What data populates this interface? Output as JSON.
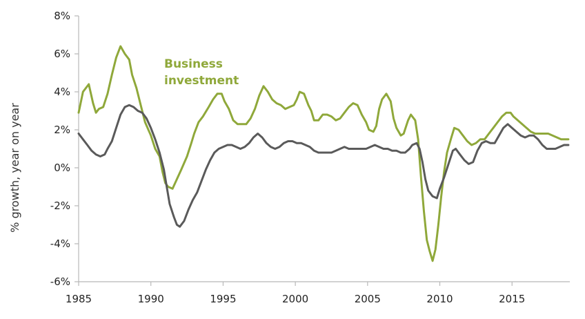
{
  "chart_data": {
    "type": "line",
    "title": "",
    "xlabel": "",
    "ylabel": "% growth, year on year",
    "xlim": [
      1985,
      2019
    ],
    "ylim": [
      -6,
      8
    ],
    "x_ticks": [
      1985,
      1990,
      1995,
      2000,
      2005,
      2010,
      2015
    ],
    "x_tick_labels": [
      "1985",
      "1990",
      "1995",
      "2000",
      "2005",
      "2010",
      "2015"
    ],
    "y_ticks": [
      -6,
      -4,
      -2,
      0,
      2,
      4,
      6,
      8
    ],
    "y_tick_labels": [
      "-6%",
      "-4%",
      "-2%",
      "0%",
      "2%",
      "4%",
      "6%",
      "8%"
    ],
    "grid": false,
    "annotations": [
      {
        "lines": [
          "Business",
          "investment"
        ],
        "series": 0
      }
    ],
    "series": [
      {
        "name": "Business investment",
        "color": "#8fa83a",
        "points": [
          [
            1985.0,
            2.9
          ],
          [
            1985.3,
            4.0
          ],
          [
            1985.7,
            4.4
          ],
          [
            1986.0,
            3.4
          ],
          [
            1986.2,
            2.9
          ],
          [
            1986.4,
            3.1
          ],
          [
            1986.7,
            3.2
          ],
          [
            1987.0,
            3.9
          ],
          [
            1987.3,
            4.9
          ],
          [
            1987.6,
            5.8
          ],
          [
            1987.9,
            6.4
          ],
          [
            1988.2,
            6.0
          ],
          [
            1988.5,
            5.7
          ],
          [
            1988.7,
            4.9
          ],
          [
            1989.0,
            4.2
          ],
          [
            1989.3,
            3.3
          ],
          [
            1989.6,
            2.4
          ],
          [
            1990.0,
            1.7
          ],
          [
            1990.3,
            1.0
          ],
          [
            1990.6,
            0.6
          ],
          [
            1990.8,
            -0.2
          ],
          [
            1991.0,
            -0.8
          ],
          [
            1991.2,
            -1.0
          ],
          [
            1991.5,
            -1.1
          ],
          [
            1991.8,
            -0.6
          ],
          [
            1992.1,
            -0.1
          ],
          [
            1992.5,
            0.6
          ],
          [
            1992.8,
            1.3
          ],
          [
            1993.0,
            1.8
          ],
          [
            1993.3,
            2.4
          ],
          [
            1993.6,
            2.7
          ],
          [
            1994.0,
            3.2
          ],
          [
            1994.3,
            3.6
          ],
          [
            1994.6,
            3.9
          ],
          [
            1994.9,
            3.9
          ],
          [
            1995.1,
            3.5
          ],
          [
            1995.4,
            3.1
          ],
          [
            1995.7,
            2.5
          ],
          [
            1996.0,
            2.3
          ],
          [
            1996.3,
            2.3
          ],
          [
            1996.6,
            2.3
          ],
          [
            1996.9,
            2.6
          ],
          [
            1997.2,
            3.1
          ],
          [
            1997.5,
            3.8
          ],
          [
            1997.8,
            4.3
          ],
          [
            1998.1,
            4.0
          ],
          [
            1998.4,
            3.6
          ],
          [
            1998.7,
            3.4
          ],
          [
            1999.0,
            3.3
          ],
          [
            1999.3,
            3.1
          ],
          [
            1999.6,
            3.2
          ],
          [
            1999.9,
            3.3
          ],
          [
            2000.1,
            3.6
          ],
          [
            2000.3,
            4.0
          ],
          [
            2000.6,
            3.9
          ],
          [
            2000.9,
            3.3
          ],
          [
            2001.1,
            3.0
          ],
          [
            2001.3,
            2.5
          ],
          [
            2001.6,
            2.5
          ],
          [
            2001.9,
            2.8
          ],
          [
            2002.2,
            2.8
          ],
          [
            2002.5,
            2.7
          ],
          [
            2002.8,
            2.5
          ],
          [
            2003.1,
            2.6
          ],
          [
            2003.4,
            2.9
          ],
          [
            2003.7,
            3.2
          ],
          [
            2004.0,
            3.4
          ],
          [
            2004.3,
            3.3
          ],
          [
            2004.6,
            2.8
          ],
          [
            2004.9,
            2.4
          ],
          [
            2005.1,
            2.0
          ],
          [
            2005.4,
            1.9
          ],
          [
            2005.6,
            2.2
          ],
          [
            2005.8,
            3.1
          ],
          [
            2006.0,
            3.6
          ],
          [
            2006.3,
            3.9
          ],
          [
            2006.6,
            3.5
          ],
          [
            2006.8,
            2.6
          ],
          [
            2007.0,
            2.1
          ],
          [
            2007.3,
            1.7
          ],
          [
            2007.5,
            1.8
          ],
          [
            2007.8,
            2.5
          ],
          [
            2008.0,
            2.8
          ],
          [
            2008.3,
            2.5
          ],
          [
            2008.5,
            1.5
          ],
          [
            2008.7,
            -0.5
          ],
          [
            2008.9,
            -2.3
          ],
          [
            2009.1,
            -3.8
          ],
          [
            2009.3,
            -4.4
          ],
          [
            2009.5,
            -4.9
          ],
          [
            2009.7,
            -4.3
          ],
          [
            2009.9,
            -3.0
          ],
          [
            2010.1,
            -1.5
          ],
          [
            2010.3,
            -0.2
          ],
          [
            2010.5,
            0.8
          ],
          [
            2010.8,
            1.6
          ],
          [
            2011.0,
            2.1
          ],
          [
            2011.3,
            2.0
          ],
          [
            2011.6,
            1.7
          ],
          [
            2011.9,
            1.4
          ],
          [
            2012.2,
            1.2
          ],
          [
            2012.5,
            1.3
          ],
          [
            2012.8,
            1.5
          ],
          [
            2013.1,
            1.5
          ],
          [
            2013.4,
            1.8
          ],
          [
            2013.7,
            2.1
          ],
          [
            2014.0,
            2.4
          ],
          [
            2014.3,
            2.7
          ],
          [
            2014.6,
            2.9
          ],
          [
            2014.9,
            2.9
          ],
          [
            2015.1,
            2.7
          ],
          [
            2015.4,
            2.5
          ],
          [
            2015.7,
            2.3
          ],
          [
            2016.0,
            2.1
          ],
          [
            2016.3,
            1.9
          ],
          [
            2016.6,
            1.8
          ],
          [
            2016.9,
            1.8
          ],
          [
            2017.2,
            1.8
          ],
          [
            2017.5,
            1.8
          ],
          [
            2017.8,
            1.7
          ],
          [
            2018.1,
            1.6
          ],
          [
            2018.4,
            1.5
          ],
          [
            2018.7,
            1.5
          ],
          [
            2018.9,
            1.5
          ]
        ]
      },
      {
        "name": "",
        "color": "#5a5a5a",
        "points": [
          [
            1985.0,
            1.8
          ],
          [
            1985.3,
            1.5
          ],
          [
            1985.6,
            1.2
          ],
          [
            1985.9,
            0.9
          ],
          [
            1986.2,
            0.7
          ],
          [
            1986.5,
            0.6
          ],
          [
            1986.8,
            0.7
          ],
          [
            1987.0,
            1.0
          ],
          [
            1987.3,
            1.4
          ],
          [
            1987.6,
            2.1
          ],
          [
            1987.9,
            2.8
          ],
          [
            1988.2,
            3.2
          ],
          [
            1988.5,
            3.3
          ],
          [
            1988.8,
            3.2
          ],
          [
            1989.1,
            3.0
          ],
          [
            1989.4,
            2.9
          ],
          [
            1989.7,
            2.6
          ],
          [
            1990.0,
            2.1
          ],
          [
            1990.3,
            1.5
          ],
          [
            1990.6,
            0.8
          ],
          [
            1990.9,
            -0.1
          ],
          [
            1991.1,
            -1.0
          ],
          [
            1991.3,
            -1.9
          ],
          [
            1991.6,
            -2.6
          ],
          [
            1991.8,
            -3.0
          ],
          [
            1992.0,
            -3.1
          ],
          [
            1992.3,
            -2.8
          ],
          [
            1992.6,
            -2.2
          ],
          [
            1992.9,
            -1.7
          ],
          [
            1993.2,
            -1.3
          ],
          [
            1993.5,
            -0.7
          ],
          [
            1993.8,
            -0.1
          ],
          [
            1994.1,
            0.4
          ],
          [
            1994.4,
            0.8
          ],
          [
            1994.7,
            1.0
          ],
          [
            1995.0,
            1.1
          ],
          [
            1995.3,
            1.2
          ],
          [
            1995.6,
            1.2
          ],
          [
            1995.9,
            1.1
          ],
          [
            1996.2,
            1.0
          ],
          [
            1996.5,
            1.1
          ],
          [
            1996.8,
            1.3
          ],
          [
            1997.1,
            1.6
          ],
          [
            1997.4,
            1.8
          ],
          [
            1997.7,
            1.6
          ],
          [
            1998.0,
            1.3
          ],
          [
            1998.3,
            1.1
          ],
          [
            1998.6,
            1.0
          ],
          [
            1998.9,
            1.1
          ],
          [
            1999.2,
            1.3
          ],
          [
            1999.5,
            1.4
          ],
          [
            1999.8,
            1.4
          ],
          [
            2000.1,
            1.3
          ],
          [
            2000.4,
            1.3
          ],
          [
            2000.7,
            1.2
          ],
          [
            2001.0,
            1.1
          ],
          [
            2001.3,
            0.9
          ],
          [
            2001.6,
            0.8
          ],
          [
            2001.9,
            0.8
          ],
          [
            2002.2,
            0.8
          ],
          [
            2002.5,
            0.8
          ],
          [
            2002.8,
            0.9
          ],
          [
            2003.1,
            1.0
          ],
          [
            2003.4,
            1.1
          ],
          [
            2003.7,
            1.0
          ],
          [
            2004.0,
            1.0
          ],
          [
            2004.3,
            1.0
          ],
          [
            2004.6,
            1.0
          ],
          [
            2004.9,
            1.0
          ],
          [
            2005.2,
            1.1
          ],
          [
            2005.5,
            1.2
          ],
          [
            2005.8,
            1.1
          ],
          [
            2006.1,
            1.0
          ],
          [
            2006.4,
            1.0
          ],
          [
            2006.7,
            0.9
          ],
          [
            2007.0,
            0.9
          ],
          [
            2007.3,
            0.8
          ],
          [
            2007.6,
            0.8
          ],
          [
            2007.9,
            1.0
          ],
          [
            2008.1,
            1.2
          ],
          [
            2008.4,
            1.3
          ],
          [
            2008.6,
            1.0
          ],
          [
            2008.8,
            0.3
          ],
          [
            2009.0,
            -0.6
          ],
          [
            2009.2,
            -1.2
          ],
          [
            2009.5,
            -1.5
          ],
          [
            2009.8,
            -1.6
          ],
          [
            2010.0,
            -1.1
          ],
          [
            2010.3,
            -0.5
          ],
          [
            2010.6,
            0.2
          ],
          [
            2010.9,
            0.9
          ],
          [
            2011.1,
            1.0
          ],
          [
            2011.4,
            0.7
          ],
          [
            2011.7,
            0.4
          ],
          [
            2012.0,
            0.2
          ],
          [
            2012.3,
            0.3
          ],
          [
            2012.6,
            0.9
          ],
          [
            2012.9,
            1.3
          ],
          [
            2013.2,
            1.4
          ],
          [
            2013.5,
            1.3
          ],
          [
            2013.8,
            1.3
          ],
          [
            2014.1,
            1.7
          ],
          [
            2014.4,
            2.1
          ],
          [
            2014.7,
            2.3
          ],
          [
            2015.0,
            2.1
          ],
          [
            2015.3,
            1.9
          ],
          [
            2015.6,
            1.7
          ],
          [
            2015.9,
            1.6
          ],
          [
            2016.2,
            1.7
          ],
          [
            2016.5,
            1.7
          ],
          [
            2016.8,
            1.5
          ],
          [
            2017.1,
            1.2
          ],
          [
            2017.4,
            1.0
          ],
          [
            2017.7,
            1.0
          ],
          [
            2018.0,
            1.0
          ],
          [
            2018.3,
            1.1
          ],
          [
            2018.6,
            1.2
          ],
          [
            2018.9,
            1.2
          ]
        ]
      }
    ]
  }
}
